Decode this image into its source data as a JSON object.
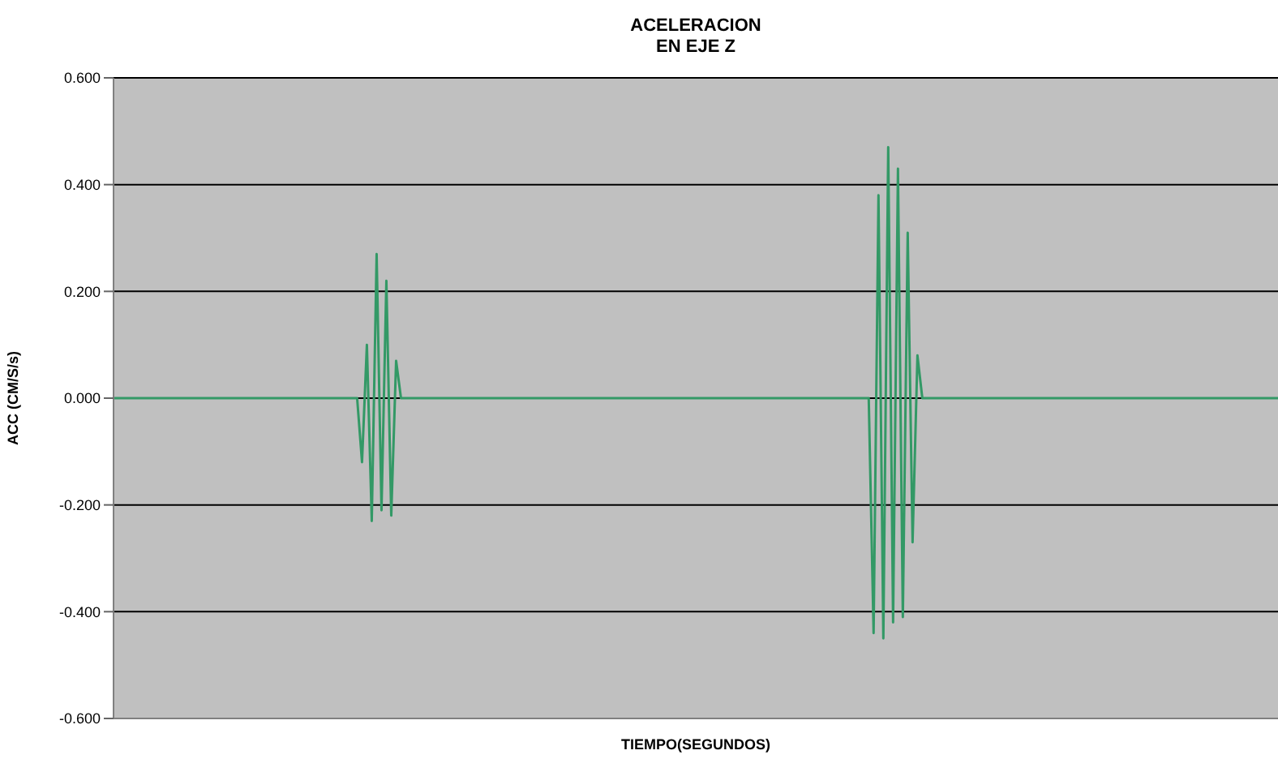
{
  "chart_data": {
    "type": "line",
    "title": "ACELERACION\nEN EJE Z",
    "xlabel": "TIEMPO(SEGUNDOS)",
    "ylabel": "ACC (CM/S/s)",
    "categories": [
      null,
      null,
      null,
      null,
      null,
      null,
      null,
      null,
      null,
      null,
      null,
      null,
      null,
      null,
      null,
      null,
      null,
      null,
      null,
      null,
      null,
      null,
      null,
      null,
      null,
      null,
      null,
      null,
      null,
      null,
      null,
      null,
      null,
      null,
      null,
      null,
      null,
      null,
      null,
      null,
      null,
      null,
      null,
      null,
      null,
      null,
      null,
      null,
      null,
      null,
      null,
      null,
      null,
      null,
      null,
      null,
      null,
      null,
      null,
      null,
      null,
      null,
      null,
      null,
      null,
      null,
      null,
      null,
      null,
      null,
      null,
      null,
      null,
      null,
      null,
      null,
      null,
      null,
      null,
      null,
      null,
      null,
      null,
      null,
      null,
      null,
      null,
      null,
      null,
      null,
      null,
      null,
      null,
      null,
      null,
      null,
      null,
      null,
      null,
      null,
      null,
      null,
      null,
      null,
      null,
      null,
      null,
      null,
      null,
      null,
      null,
      null,
      null,
      null,
      null,
      null,
      null,
      null,
      null,
      null,
      null,
      null,
      null,
      null,
      null,
      null,
      null,
      null,
      null,
      null,
      null,
      null,
      null,
      null,
      null,
      null,
      null,
      null,
      null,
      null,
      null,
      null,
      null,
      null,
      null,
      null,
      null,
      null,
      null,
      null,
      null,
      null,
      null,
      null,
      null,
      null,
      null,
      null,
      null,
      null,
      null,
      null,
      null,
      null,
      null,
      null,
      null,
      null,
      null,
      null,
      null,
      null,
      null,
      null,
      null,
      null,
      null,
      null,
      null,
      null,
      null,
      null,
      null,
      null,
      null,
      null,
      null,
      null,
      null,
      null,
      null,
      null,
      null,
      null,
      null,
      null,
      null,
      null,
      null,
      null,
      null,
      null,
      null,
      null,
      null,
      null,
      null,
      null,
      null,
      null,
      null,
      null,
      null,
      null,
      null,
      null,
      null,
      null,
      null,
      null,
      null,
      null,
      null,
      null,
      null,
      null,
      null,
      null,
      null,
      null,
      null,
      null,
      null,
      null,
      null,
      null,
      null,
      null,
      null,
      null
    ],
    "series": [
      {
        "color": "#339966",
        "values": [
          0,
          0,
          0,
          0,
          0,
          0,
          0,
          0,
          0,
          0,
          0,
          0,
          0,
          0,
          0,
          0,
          0,
          0,
          0,
          0,
          0,
          0,
          0,
          0,
          0,
          0,
          0,
          0,
          0,
          0,
          0,
          0,
          0,
          0,
          0,
          0,
          0,
          0,
          0,
          0,
          0,
          0,
          0,
          0,
          0,
          0,
          0,
          0,
          0,
          0,
          0,
          -0.12,
          0.1,
          -0.23,
          0.27,
          -0.21,
          0.22,
          -0.22,
          0.07,
          0,
          0,
          0,
          0,
          0,
          0,
          0,
          0,
          0,
          0,
          0,
          0,
          0,
          0,
          0,
          0,
          0,
          0,
          0,
          0,
          0,
          0,
          0,
          0,
          0,
          0,
          0,
          0,
          0,
          0,
          0,
          0,
          0,
          0,
          0,
          0,
          0,
          0,
          0,
          0,
          0,
          0,
          0,
          0,
          0,
          0,
          0,
          0,
          0,
          0,
          0,
          0,
          0,
          0,
          0,
          0,
          0,
          0,
          0,
          0,
          0,
          0,
          0,
          0,
          0,
          0,
          0,
          0,
          0,
          0,
          0,
          0,
          0,
          0,
          0,
          0,
          0,
          0,
          0,
          0,
          0,
          0,
          0,
          0,
          0,
          0,
          0,
          0,
          0,
          0,
          0,
          0,
          0,
          0,
          0,
          0,
          0,
          -0.44,
          0.38,
          -0.45,
          0.47,
          -0.42,
          0.43,
          -0.41,
          0.31,
          -0.27,
          0.08,
          0,
          0,
          0,
          0,
          0,
          0,
          0,
          0,
          0,
          0,
          0,
          0,
          0,
          0,
          0,
          0,
          0,
          0,
          0,
          0,
          0,
          0,
          0,
          0,
          0,
          0,
          0,
          0,
          0,
          0,
          0,
          0,
          0,
          0,
          0,
          0,
          0,
          0,
          0,
          0,
          0,
          0,
          0,
          0,
          0,
          0,
          0,
          0,
          0,
          0,
          0,
          0,
          0,
          0,
          0,
          0,
          0,
          0,
          0,
          0,
          0,
          0,
          0,
          0,
          0,
          0,
          0,
          0,
          0,
          0,
          0,
          0,
          0,
          0
        ]
      }
    ],
    "ylim": [
      -0.6,
      0.6
    ],
    "yticks": [
      {
        "value": -0.6,
        "label": "-0.600"
      },
      {
        "value": -0.4,
        "label": "-0.400"
      },
      {
        "value": -0.2,
        "label": "-0.200"
      },
      {
        "value": 0,
        "label": "0.000"
      },
      {
        "value": 0.2,
        "label": "0.200"
      },
      {
        "value": 0.4,
        "label": "0.400"
      },
      {
        "value": 0.6,
        "label": "0.600"
      }
    ],
    "grid": "y",
    "marker": "none",
    "line_style": "solid",
    "tick_labels": "y"
  }
}
